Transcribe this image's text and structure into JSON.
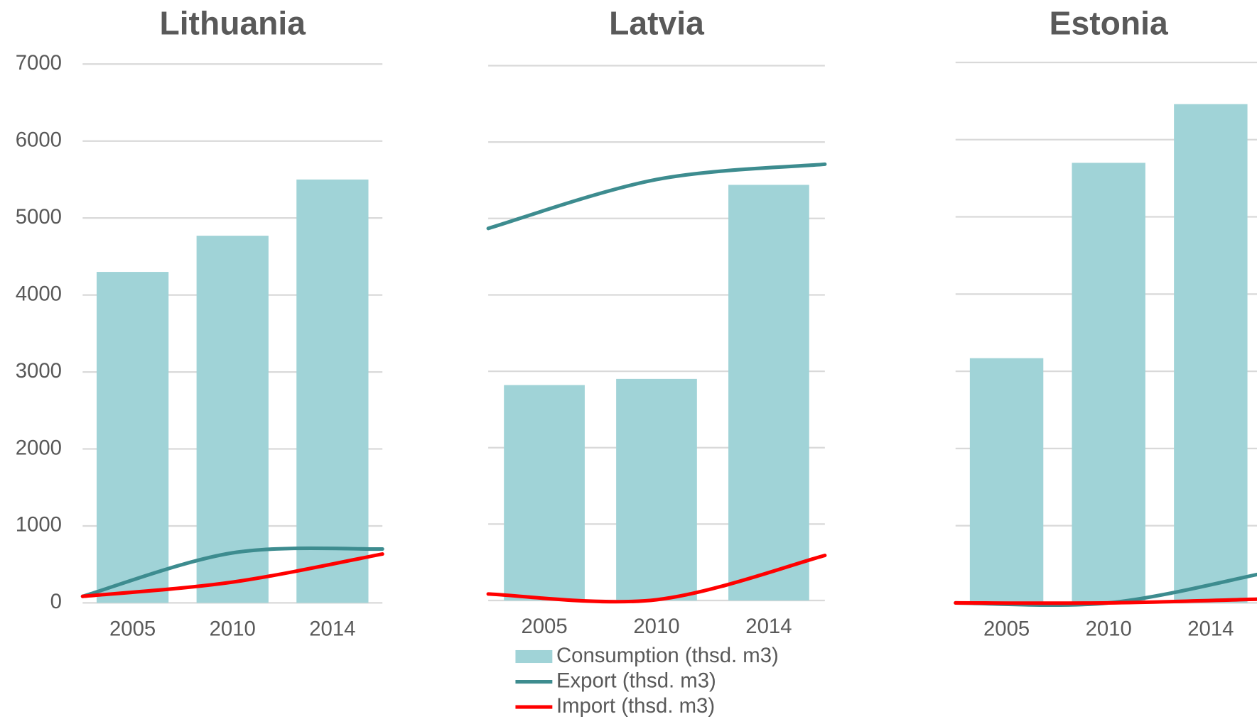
{
  "chart_data": [
    {
      "type": "bar",
      "title": "Lithuania",
      "categories": [
        "2005",
        "2010",
        "2014"
      ],
      "series": [
        {
          "type": "bar",
          "color": "#a0d3d7",
          "values": [
            4300,
            4770,
            5500
          ]
        },
        {
          "type": "line",
          "color": "#3d8c8f",
          "values": [
            85,
            650,
            700
          ]
        },
        {
          "type": "line",
          "color": "#ff0000",
          "values": [
            85,
            270,
            635
          ]
        }
      ],
      "ylim": [
        0,
        7000
      ],
      "yticks": [
        0,
        1000,
        2000,
        3000,
        4000,
        5000,
        6000,
        7000
      ],
      "ytick_labels": true,
      "grid": true
    },
    {
      "type": "bar",
      "title": "Latvia",
      "categories": [
        "2005",
        "2010",
        "2014"
      ],
      "series": [
        {
          "type": "bar",
          "name": "Consumption (thsd. m3)",
          "color": "#a0d3d7",
          "values": [
            2820,
            2900,
            5440
          ]
        },
        {
          "type": "line",
          "name": "Export (thsd. m3)",
          "color": "#3d8c8f",
          "values": [
            4870,
            5510,
            5710
          ]
        },
        {
          "type": "line",
          "name": "Import (thsd. m3)",
          "color": "#ff0000",
          "values": [
            85,
            10,
            590
          ]
        }
      ],
      "ylim": [
        0,
        7000
      ],
      "yticks": [
        0,
        1000,
        2000,
        3000,
        4000,
        5000,
        6000,
        7000
      ],
      "ytick_labels": false,
      "grid": true,
      "legend": "bottom"
    },
    {
      "type": "bar",
      "title": "Estonia",
      "categories": [
        "2005",
        "2010",
        "2014"
      ],
      "series": [
        {
          "type": "bar",
          "color": "#a0d3d7",
          "values": [
            3170,
            5700,
            6460
          ]
        },
        {
          "type": "line",
          "color": "#3d8c8f",
          "values": [
            0,
            0,
            380
          ]
        },
        {
          "type": "line",
          "color": "#ff0000",
          "values": [
            0,
            0,
            50
          ]
        }
      ],
      "ylim": [
        0,
        7000
      ],
      "yticks": [
        0,
        1000,
        2000,
        3000,
        4000,
        5000,
        6000,
        7000
      ],
      "ytick_labels": false,
      "grid": true
    }
  ]
}
